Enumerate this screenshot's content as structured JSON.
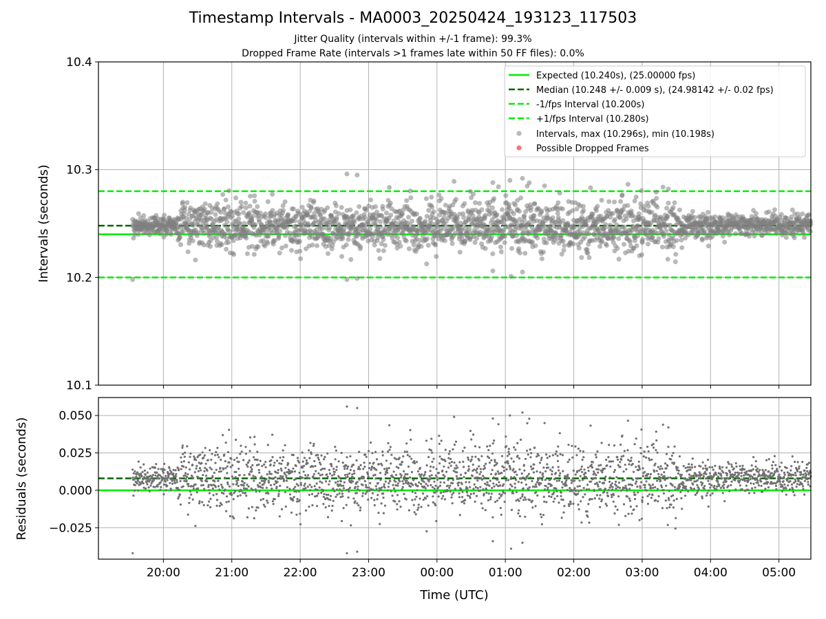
{
  "title": "Timestamp Intervals - MA0003_20250424_193123_117503",
  "subtitle_jitter": "Jitter Quality (intervals within +/-1 frame): 99.3%",
  "subtitle_dropped": "Dropped Frame Rate (intervals >1 frames late within 50 FF files): 0.0%",
  "colors": {
    "expected": "#00ee00",
    "median": "#006400",
    "interval_bounds": "#00ee00",
    "intervals": "#808080",
    "dropped": "#ff0000",
    "grid": "#b0b0b0"
  },
  "chart_data": [
    {
      "type": "scatter",
      "panel": "intervals",
      "ylabel": "Intervals (seconds)",
      "xlabel": "",
      "x_range": [
        "19:03",
        "05:28"
      ],
      "ylim": [
        10.1,
        10.4
      ],
      "yticks": [
        "10.1",
        "10.2",
        "10.3",
        "10.4"
      ],
      "xticks": [
        "20:00",
        "21:00",
        "22:00",
        "23:00",
        "00:00",
        "01:00",
        "02:00",
        "03:00",
        "04:00",
        "05:00"
      ],
      "grid": true,
      "legend_position": "top-right",
      "reference_lines": [
        {
          "name": "Expected (10.240s), (25.00000 fps)",
          "value": 10.24,
          "style": "solid",
          "color_key": "expected"
        },
        {
          "name": "Median (10.248 +/- 0.009 s), (24.98142 +/- 0.02 fps)",
          "value": 10.248,
          "style": "dashed",
          "color_key": "median"
        },
        {
          "name": "-1/fps Interval (10.200s)",
          "value": 10.2,
          "style": "dashed",
          "color_key": "interval_bounds"
        },
        {
          "name": "+1/fps Interval (10.280s)",
          "value": 10.28,
          "style": "dashed",
          "color_key": "interval_bounds"
        }
      ],
      "series": [
        {
          "name": "Intervals, max (10.296s), min (10.198s)",
          "start": "19:33",
          "end": "05:28",
          "center": 10.248,
          "max": 10.296,
          "min": 10.198,
          "noted_points": [
            {
              "x": "19:33",
              "y": 10.198
            },
            {
              "x": "22:41",
              "y": 10.296
            },
            {
              "x": "22:50",
              "y": 10.295
            },
            {
              "x": "00:49",
              "y": 10.288
            },
            {
              "x": "01:04",
              "y": 10.29
            },
            {
              "x": "01:15",
              "y": 10.292
            },
            {
              "x": "03:23",
              "y": 10.282
            },
            {
              "x": "01:05",
              "y": 10.201
            },
            {
              "x": "01:15",
              "y": 10.205
            },
            {
              "x": "00:49",
              "y": 10.206
            },
            {
              "x": "22:41",
              "y": 10.198
            },
            {
              "x": "22:50",
              "y": 10.199
            }
          ]
        },
        {
          "name": "Possible Dropped Frames",
          "points": []
        }
      ]
    },
    {
      "type": "scatter",
      "panel": "residuals",
      "ylabel": "Residuals (seconds)",
      "xlabel": "Time (UTC)",
      "x_range": [
        "19:03",
        "05:28"
      ],
      "ylim": [
        -0.046,
        0.062
      ],
      "yticks": [
        "−0.025",
        "0.000",
        "0.025",
        "0.050"
      ],
      "xticks": [
        "20:00",
        "21:00",
        "22:00",
        "23:00",
        "00:00",
        "01:00",
        "02:00",
        "03:00",
        "04:00",
        "05:00"
      ],
      "grid": true,
      "reference_lines": [
        {
          "value": 0.0,
          "style": "solid",
          "color_key": "expected"
        },
        {
          "value": 0.008,
          "style": "dashed",
          "color_key": "median"
        }
      ],
      "series": [
        {
          "name": "Residuals",
          "start": "19:33",
          "end": "05:28",
          "center": 0.008,
          "max": 0.056,
          "min": -0.042
        }
      ]
    }
  ]
}
